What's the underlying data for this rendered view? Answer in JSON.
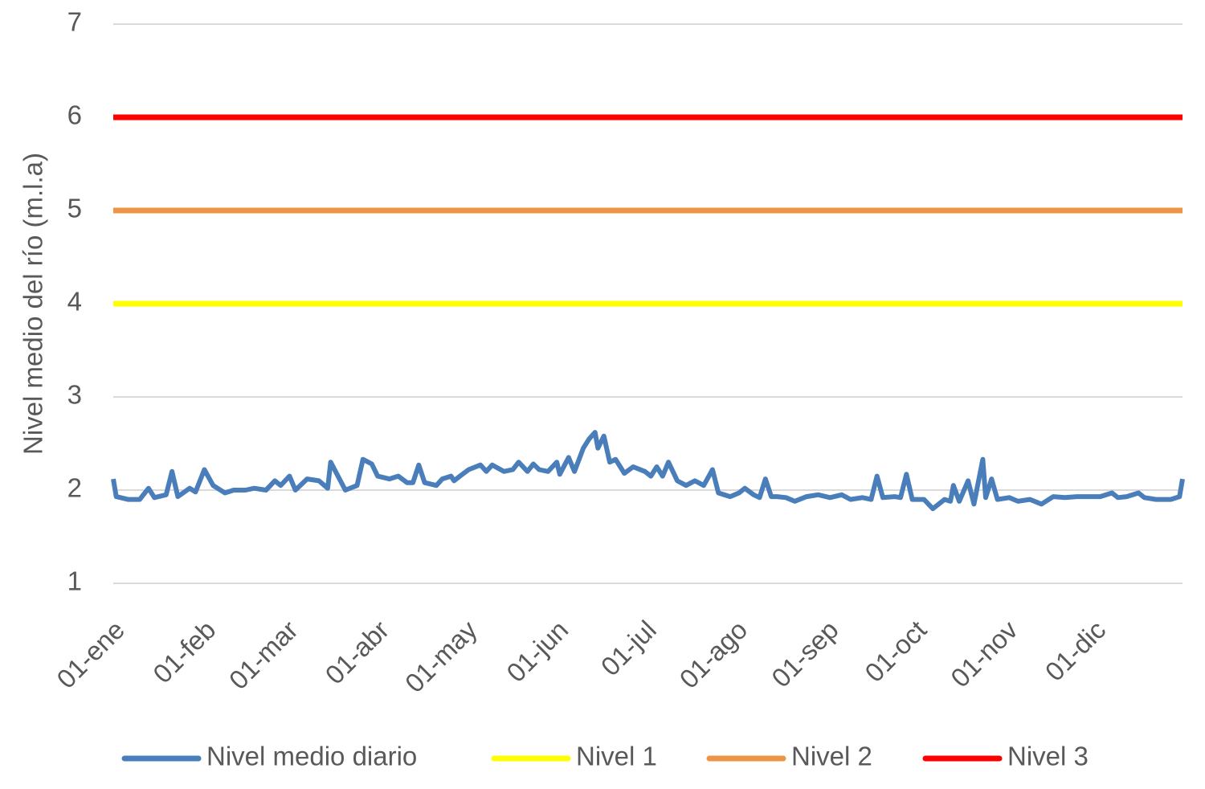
{
  "chart_data": {
    "type": "line",
    "y_label": "Nivel medio del río (m.l.a)",
    "xlim": [
      0,
      364
    ],
    "xticks": [
      {
        "value": 0,
        "label": "01-ene"
      },
      {
        "value": 31,
        "label": "01-feb"
      },
      {
        "value": 59,
        "label": "01-mar"
      },
      {
        "value": 90,
        "label": "01-abr"
      },
      {
        "value": 120,
        "label": "01-may"
      },
      {
        "value": 151,
        "label": "01-jun"
      },
      {
        "value": 181,
        "label": "01-jul"
      },
      {
        "value": 212,
        "label": "01-ago"
      },
      {
        "value": 243,
        "label": "01-sep"
      },
      {
        "value": 273,
        "label": "01-oct"
      },
      {
        "value": 304,
        "label": "01-nov"
      },
      {
        "value": 334,
        "label": "01-dic"
      }
    ],
    "ylim": [
      1,
      7
    ],
    "yticks": [
      1,
      2,
      3,
      4,
      5,
      6,
      7
    ],
    "grid": true,
    "legend": "bottom",
    "series": [
      {
        "name": "Nivel medio diario",
        "color": "#4a7ebb",
        "x": [
          0,
          1,
          5,
          9,
          12,
          14,
          18,
          20,
          22,
          26,
          28,
          31,
          34,
          38,
          41,
          45,
          48,
          52,
          55,
          57,
          60,
          62,
          66,
          70,
          73,
          74,
          77,
          79,
          83,
          85,
          88,
          90,
          94,
          97,
          100,
          102,
          104,
          106,
          110,
          112,
          115,
          116,
          118,
          121,
          125,
          127,
          129,
          133,
          136,
          138,
          141,
          143,
          145,
          148,
          151,
          152,
          155,
          157,
          160,
          162,
          164,
          165,
          167,
          169,
          171,
          174,
          177,
          181,
          183,
          185,
          187,
          189,
          192,
          195,
          198,
          201,
          204,
          206,
          210,
          213,
          215,
          218,
          220,
          222,
          224,
          226,
          229,
          232,
          236,
          240,
          244,
          248,
          251,
          255,
          258,
          260,
          262,
          266,
          268,
          270,
          272,
          276,
          279,
          283,
          285,
          286,
          288,
          291,
          293,
          296,
          297,
          299,
          301,
          305,
          308,
          312,
          316,
          320,
          324,
          328,
          332,
          336,
          340,
          342,
          345,
          349,
          351,
          355,
          360,
          363,
          364
        ],
        "values": [
          2.12,
          1.93,
          1.9,
          1.9,
          2.02,
          1.92,
          1.95,
          2.2,
          1.93,
          2.02,
          1.98,
          2.22,
          2.05,
          1.97,
          2.0,
          2.0,
          2.02,
          2.0,
          2.1,
          2.05,
          2.15,
          2.0,
          2.12,
          2.1,
          2.02,
          2.3,
          2.12,
          2.0,
          2.05,
          2.33,
          2.28,
          2.15,
          2.12,
          2.15,
          2.08,
          2.08,
          2.27,
          2.08,
          2.05,
          2.12,
          2.15,
          2.1,
          2.15,
          2.22,
          2.27,
          2.2,
          2.27,
          2.2,
          2.22,
          2.3,
          2.2,
          2.28,
          2.22,
          2.2,
          2.3,
          2.17,
          2.35,
          2.2,
          2.45,
          2.55,
          2.62,
          2.45,
          2.58,
          2.3,
          2.33,
          2.18,
          2.25,
          2.2,
          2.15,
          2.25,
          2.15,
          2.3,
          2.1,
          2.05,
          2.1,
          2.05,
          2.22,
          1.97,
          1.93,
          1.97,
          2.02,
          1.95,
          1.92,
          2.12,
          1.93,
          1.93,
          1.92,
          1.88,
          1.93,
          1.95,
          1.92,
          1.95,
          1.9,
          1.92,
          1.9,
          2.15,
          1.92,
          1.93,
          1.92,
          2.17,
          1.9,
          1.9,
          1.8,
          1.9,
          1.88,
          2.05,
          1.88,
          2.1,
          1.85,
          2.33,
          1.92,
          2.12,
          1.9,
          1.92,
          1.88,
          1.9,
          1.85,
          1.93,
          1.92,
          1.93,
          1.93,
          1.93,
          1.97,
          1.92,
          1.93,
          1.97,
          1.92,
          1.9,
          1.9,
          1.93,
          2.12
        ]
      },
      {
        "name": "Nivel 1",
        "color": "#ffff00",
        "x": [
          0,
          364
        ],
        "values": [
          4,
          4
        ]
      },
      {
        "name": "Nivel 2",
        "color": "#ed9446",
        "x": [
          0,
          364
        ],
        "values": [
          5,
          5
        ]
      },
      {
        "name": "Nivel 3",
        "color": "#ff0000",
        "x": [
          0,
          364
        ],
        "values": [
          6,
          6
        ]
      }
    ]
  }
}
